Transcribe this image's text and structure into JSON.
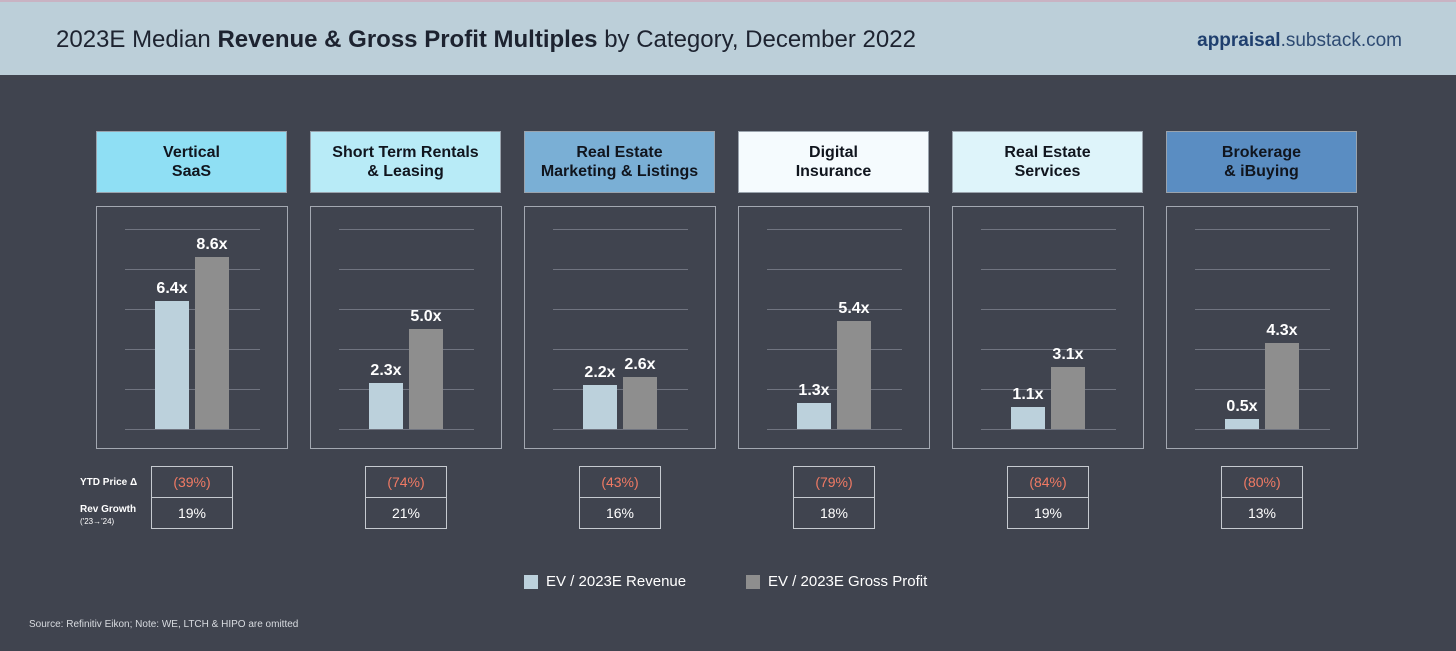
{
  "header": {
    "title_pre": "2023E Median ",
    "title_bold": "Revenue & Gross Profit Multiples",
    "title_post": " by Category, December 2022",
    "brand_bold": "appraisal",
    "brand_rest": ".substack.com"
  },
  "rows": {
    "price_label": "YTD Price Δ",
    "growth_label": "Rev Growth",
    "growth_sub": "('23→'24)"
  },
  "legend": {
    "revenue": "EV / 2023E Revenue",
    "gross_profit": "EV / 2023E Gross Profit"
  },
  "colors": {
    "revenue": "#bcd1dc",
    "gross_profit": "#8e8e8e",
    "negative": "#f07a64"
  },
  "source": "Source: Refinitiv Eikon; Note: WE, LTCH & HIPO are omitted",
  "chart_data": {
    "type": "bar",
    "ylim": [
      0,
      10
    ],
    "grid": true,
    "legend_position": "bottom",
    "series_names": [
      "EV / 2023E Revenue",
      "EV / 2023E Gross Profit"
    ],
    "categories": [
      {
        "label": "Vertical\nSaaS",
        "color": "#8fdff4",
        "revenue": 6.4,
        "gross_profit": 8.6,
        "revenue_label": "6.4x",
        "gross_profit_label": "8.6x",
        "price_change": "(39%)",
        "rev_growth": "19%"
      },
      {
        "label": "Short Term Rentals\n& Leasing",
        "color": "#b8ebf7",
        "revenue": 2.3,
        "gross_profit": 5.0,
        "revenue_label": "2.3x",
        "gross_profit_label": "5.0x",
        "price_change": "(74%)",
        "rev_growth": "21%"
      },
      {
        "label": "Real Estate\nMarketing & Listings",
        "color": "#7aafd5",
        "revenue": 2.2,
        "gross_profit": 2.6,
        "revenue_label": "2.2x",
        "gross_profit_label": "2.6x",
        "price_change": "(43%)",
        "rev_growth": "16%"
      },
      {
        "label": "Digital\nInsurance",
        "color": "#f5fbfe",
        "revenue": 1.3,
        "gross_profit": 5.4,
        "revenue_label": "1.3x",
        "gross_profit_label": "5.4x",
        "price_change": "(79%)",
        "rev_growth": "18%"
      },
      {
        "label": "Real Estate\nServices",
        "color": "#def4fa",
        "revenue": 1.1,
        "gross_profit": 3.1,
        "revenue_label": "1.1x",
        "gross_profit_label": "3.1x",
        "price_change": "(84%)",
        "rev_growth": "19%"
      },
      {
        "label": "Brokerage\n& iBuying",
        "color": "#5a8dc2",
        "revenue": 0.5,
        "gross_profit": 4.3,
        "revenue_label": "0.5x",
        "gross_profit_label": "4.3x",
        "price_change": "(80%)",
        "rev_growth": "13%"
      }
    ]
  }
}
